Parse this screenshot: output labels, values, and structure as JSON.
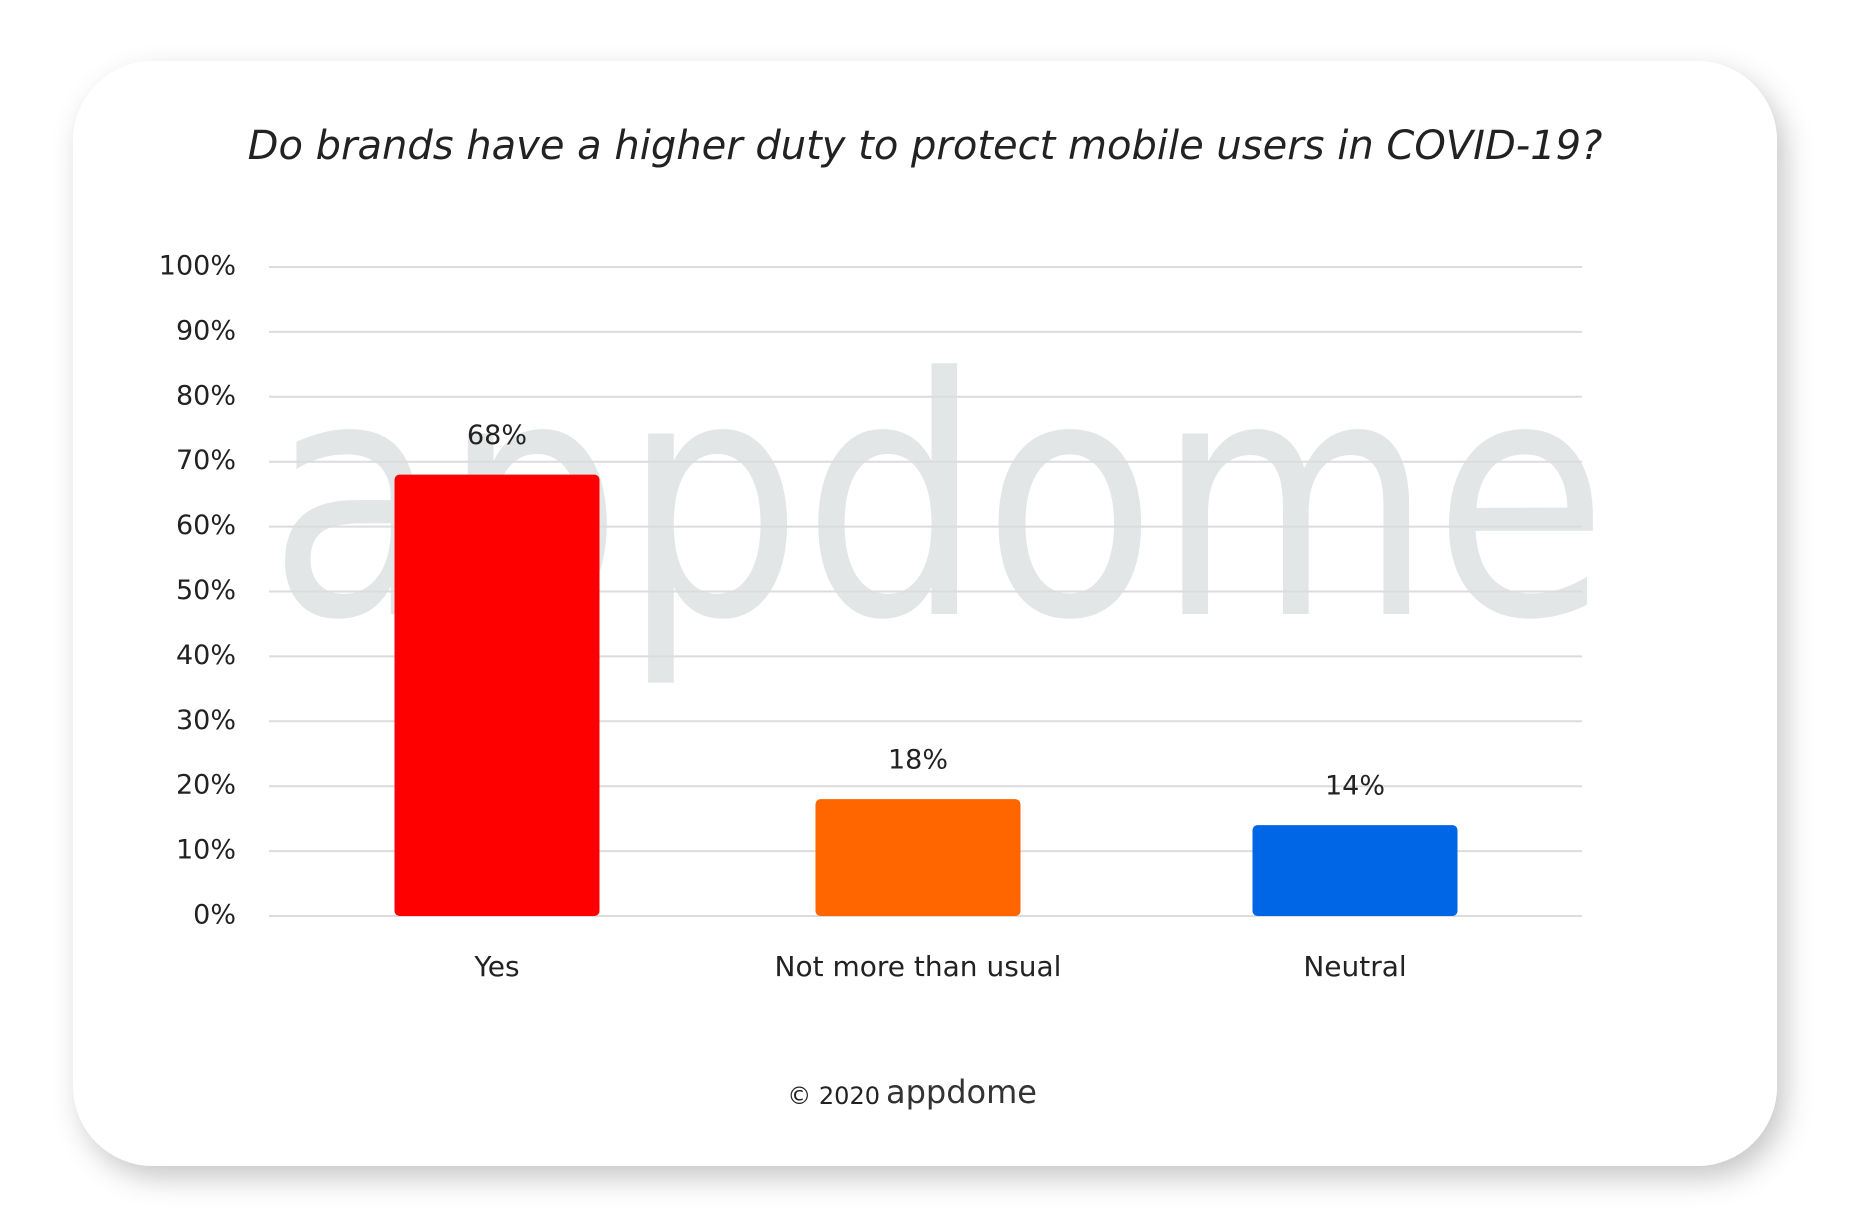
{
  "chart_data": {
    "type": "bar",
    "title": "Do brands have a higher duty to protect mobile users in COVID-19?",
    "watermark": "appdome",
    "footer": {
      "copyright": "© 2020",
      "brand": "appdome"
    },
    "categories": [
      "Yes",
      "Not more than usual",
      "Neutral"
    ],
    "values": [
      68,
      18,
      14
    ],
    "value_labels": [
      "68%",
      "18%",
      "14%"
    ],
    "colors": [
      "#ff0000",
      "#ff6600",
      "#0066e6"
    ],
    "ylim": [
      0,
      100
    ],
    "yticks": [
      {
        "value": 0,
        "label": "0%"
      },
      {
        "value": 10,
        "label": "10%"
      },
      {
        "value": 20,
        "label": "20%"
      },
      {
        "value": 30,
        "label": "30%"
      },
      {
        "value": 40,
        "label": "40%"
      },
      {
        "value": 50,
        "label": "50%"
      },
      {
        "value": 60,
        "label": "60%"
      },
      {
        "value": 70,
        "label": "70%"
      },
      {
        "value": 80,
        "label": "80%"
      },
      {
        "value": 90,
        "label": "90%"
      },
      {
        "value": 100,
        "label": "100%"
      }
    ],
    "grid": true
  }
}
